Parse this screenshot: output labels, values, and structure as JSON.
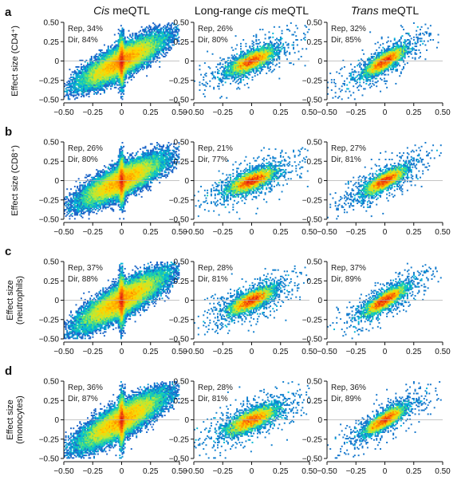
{
  "figure": {
    "columns": [
      {
        "prefix": "",
        "italic": "Cis",
        "suffix": " meQTL"
      },
      {
        "prefix": "Long-range ",
        "italic": "cis",
        "suffix": " meQTL"
      },
      {
        "prefix": "",
        "italic": "Trans",
        "suffix": " meQTL"
      }
    ],
    "rows": [
      {
        "letter": "a",
        "ylabel_lines": [
          "Effect size (CD4⁺)"
        ]
      },
      {
        "letter": "b",
        "ylabel_lines": [
          "Effect size (CD8⁺)"
        ]
      },
      {
        "letter": "c",
        "ylabel_lines": [
          "Effect size",
          "(neutrophils)"
        ]
      },
      {
        "letter": "d",
        "ylabel_lines": [
          "Effect size",
          "(monocytes)"
        ]
      }
    ],
    "x_tick_labels": [
      "−0.50",
      "−0.25",
      "0",
      "0.25",
      "0.50"
    ],
    "y_tick_labels": [
      "−0.50",
      "−0.25",
      "0",
      "0.25",
      "0.50"
    ]
  },
  "chart_data": [
    {
      "type": "heatmap",
      "row": "a",
      "column": "Cis meQTL",
      "rep_label": "Rep, 34%",
      "dir_label": "Dir, 84%",
      "rep": 34,
      "dir": 84,
      "spread": 0.16,
      "slope": 0.75,
      "xlim": [
        -0.5,
        0.5
      ],
      "ylim": [
        -0.5,
        0.5
      ]
    },
    {
      "type": "heatmap",
      "row": "a",
      "column": "Long-range cis meQTL",
      "rep_label": "Rep, 26%",
      "dir_label": "Dir, 80%",
      "rep": 26,
      "dir": 80,
      "spread": 0.09,
      "slope": 0.6,
      "xlim": [
        -0.5,
        0.5
      ],
      "ylim": [
        -0.5,
        0.5
      ]
    },
    {
      "type": "heatmap",
      "row": "a",
      "column": "Trans meQTL",
      "rep_label": "Rep, 32%",
      "dir_label": "Dir, 85%",
      "rep": 32,
      "dir": 85,
      "spread": 0.08,
      "slope": 0.85,
      "xlim": [
        -0.5,
        0.5
      ],
      "ylim": [
        -0.5,
        0.5
      ]
    },
    {
      "type": "heatmap",
      "row": "b",
      "column": "Cis meQTL",
      "rep_label": "Rep, 26%",
      "dir_label": "Dir, 80%",
      "rep": 26,
      "dir": 80,
      "spread": 0.16,
      "slope": 0.7,
      "xlim": [
        -0.5,
        0.5
      ],
      "ylim": [
        -0.5,
        0.5
      ]
    },
    {
      "type": "heatmap",
      "row": "b",
      "column": "Long-range cis meQTL",
      "rep_label": "Rep, 21%",
      "dir_label": "Dir, 77%",
      "rep": 21,
      "dir": 77,
      "spread": 0.09,
      "slope": 0.55,
      "xlim": [
        -0.5,
        0.5
      ],
      "ylim": [
        -0.5,
        0.5
      ]
    },
    {
      "type": "heatmap",
      "row": "b",
      "column": "Trans meQTL",
      "rep_label": "Rep, 27%",
      "dir_label": "Dir, 81%",
      "rep": 27,
      "dir": 81,
      "spread": 0.08,
      "slope": 0.75,
      "xlim": [
        -0.5,
        0.5
      ],
      "ylim": [
        -0.5,
        0.5
      ]
    },
    {
      "type": "heatmap",
      "row": "c",
      "column": "Cis meQTL",
      "rep_label": "Rep, 37%",
      "dir_label": "Dir, 88%",
      "rep": 37,
      "dir": 88,
      "spread": 0.17,
      "slope": 0.8,
      "xlim": [
        -0.5,
        0.5
      ],
      "ylim": [
        -0.5,
        0.5
      ]
    },
    {
      "type": "heatmap",
      "row": "c",
      "column": "Long-range cis meQTL",
      "rep_label": "Rep, 28%",
      "dir_label": "Dir, 81%",
      "rep": 28,
      "dir": 81,
      "spread": 0.09,
      "slope": 0.65,
      "xlim": [
        -0.5,
        0.5
      ],
      "ylim": [
        -0.5,
        0.5
      ]
    },
    {
      "type": "heatmap",
      "row": "c",
      "column": "Trans meQTL",
      "rep_label": "Rep, 37%",
      "dir_label": "Dir, 89%",
      "rep": 37,
      "dir": 89,
      "spread": 0.08,
      "slope": 0.85,
      "xlim": [
        -0.5,
        0.5
      ],
      "ylim": [
        -0.5,
        0.5
      ]
    },
    {
      "type": "heatmap",
      "row": "d",
      "column": "Cis meQTL",
      "rep_label": "Rep, 36%",
      "dir_label": "Dir, 87%",
      "rep": 36,
      "dir": 87,
      "spread": 0.17,
      "slope": 0.8,
      "xlim": [
        -0.5,
        0.5
      ],
      "ylim": [
        -0.5,
        0.5
      ]
    },
    {
      "type": "heatmap",
      "row": "d",
      "column": "Long-range cis meQTL",
      "rep_label": "Rep, 28%",
      "dir_label": "Dir, 81%",
      "rep": 28,
      "dir": 81,
      "spread": 0.1,
      "slope": 0.6,
      "xlim": [
        -0.5,
        0.5
      ],
      "ylim": [
        -0.5,
        0.5
      ]
    },
    {
      "type": "heatmap",
      "row": "d",
      "column": "Trans meQTL",
      "rep_label": "Rep, 36%",
      "dir_label": "Dir, 89%",
      "rep": 36,
      "dir": 89,
      "spread": 0.08,
      "slope": 0.85,
      "xlim": [
        -0.5,
        0.5
      ],
      "ylim": [
        -0.5,
        0.5
      ]
    }
  ],
  "colors": {
    "density_scale": [
      "#00008b",
      "#1e64c8",
      "#00b4dc",
      "#28d79b",
      "#b4eb3c",
      "#ffd700",
      "#ff7800",
      "#dc1414"
    ],
    "axis": "#111111",
    "zero_line": "#b0b0b0"
  }
}
